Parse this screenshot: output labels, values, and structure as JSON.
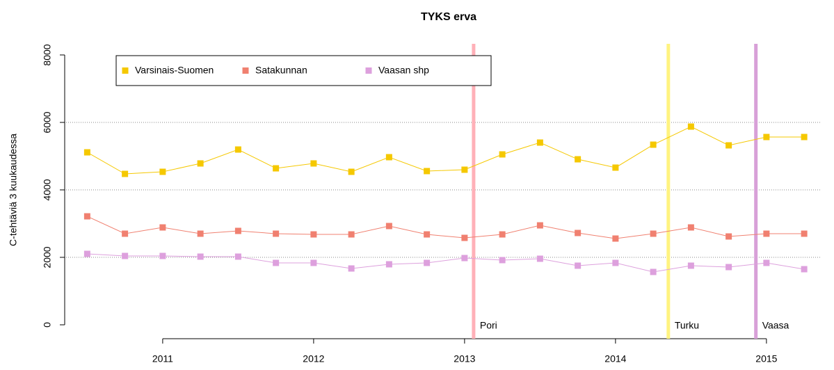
{
  "chart_data": {
    "type": "line",
    "title": "TYKS erva",
    "ylabel": "C-tehtäviä 3 kuukaudessa",
    "x": [
      2010.5,
      2010.75,
      2011,
      2011.25,
      2011.5,
      2011.75,
      2012,
      2012.25,
      2012.5,
      2012.75,
      2013,
      2013.25,
      2013.5,
      2013.75,
      2014,
      2014.25,
      2014.5,
      2014.75,
      2015,
      2015.25
    ],
    "series": [
      {
        "name": "Varsinais-Suomen",
        "color": "#f5c800",
        "values": [
          5113,
          4474,
          4536,
          4784,
          5196,
          4639,
          4784,
          4536,
          4969,
          4557,
          4598,
          5052,
          5402,
          4907,
          4660,
          5340,
          5876,
          5320,
          5567,
          5567
        ]
      },
      {
        "name": "Satakunnan",
        "color": "#f08070",
        "values": [
          3216,
          2701,
          2887,
          2701,
          2784,
          2701,
          2680,
          2680,
          2928,
          2680,
          2577,
          2680,
          2948,
          2722,
          2557,
          2701,
          2887,
          2619,
          2701,
          2701
        ]
      },
      {
        "name": "Vaasan shp",
        "color": "#dda0dd",
        "values": [
          2103,
          2041,
          2041,
          2021,
          2021,
          1835,
          1835,
          1670,
          1794,
          1835,
          1979,
          1918,
          1959,
          1753,
          1835,
          1567,
          1753,
          1711,
          1835,
          1649
        ]
      }
    ],
    "vlines": [
      {
        "x": 2013.06,
        "label": "Pori",
        "color": "#ffb0b8"
      },
      {
        "x": 2014.35,
        "label": "Turku",
        "color": "#fff380"
      },
      {
        "x": 2014.93,
        "label": "Vaasa",
        "color": "#d8a0d8"
      }
    ],
    "xlim": [
      2010.36,
      2015.36
    ],
    "xticks": [
      2011,
      2012,
      2013,
      2014,
      2015
    ],
    "ylim": [
      -412,
      8330
    ],
    "yticks": [
      0,
      2000,
      4000,
      6000,
      8000
    ],
    "grid": true,
    "legend": "top-left"
  }
}
